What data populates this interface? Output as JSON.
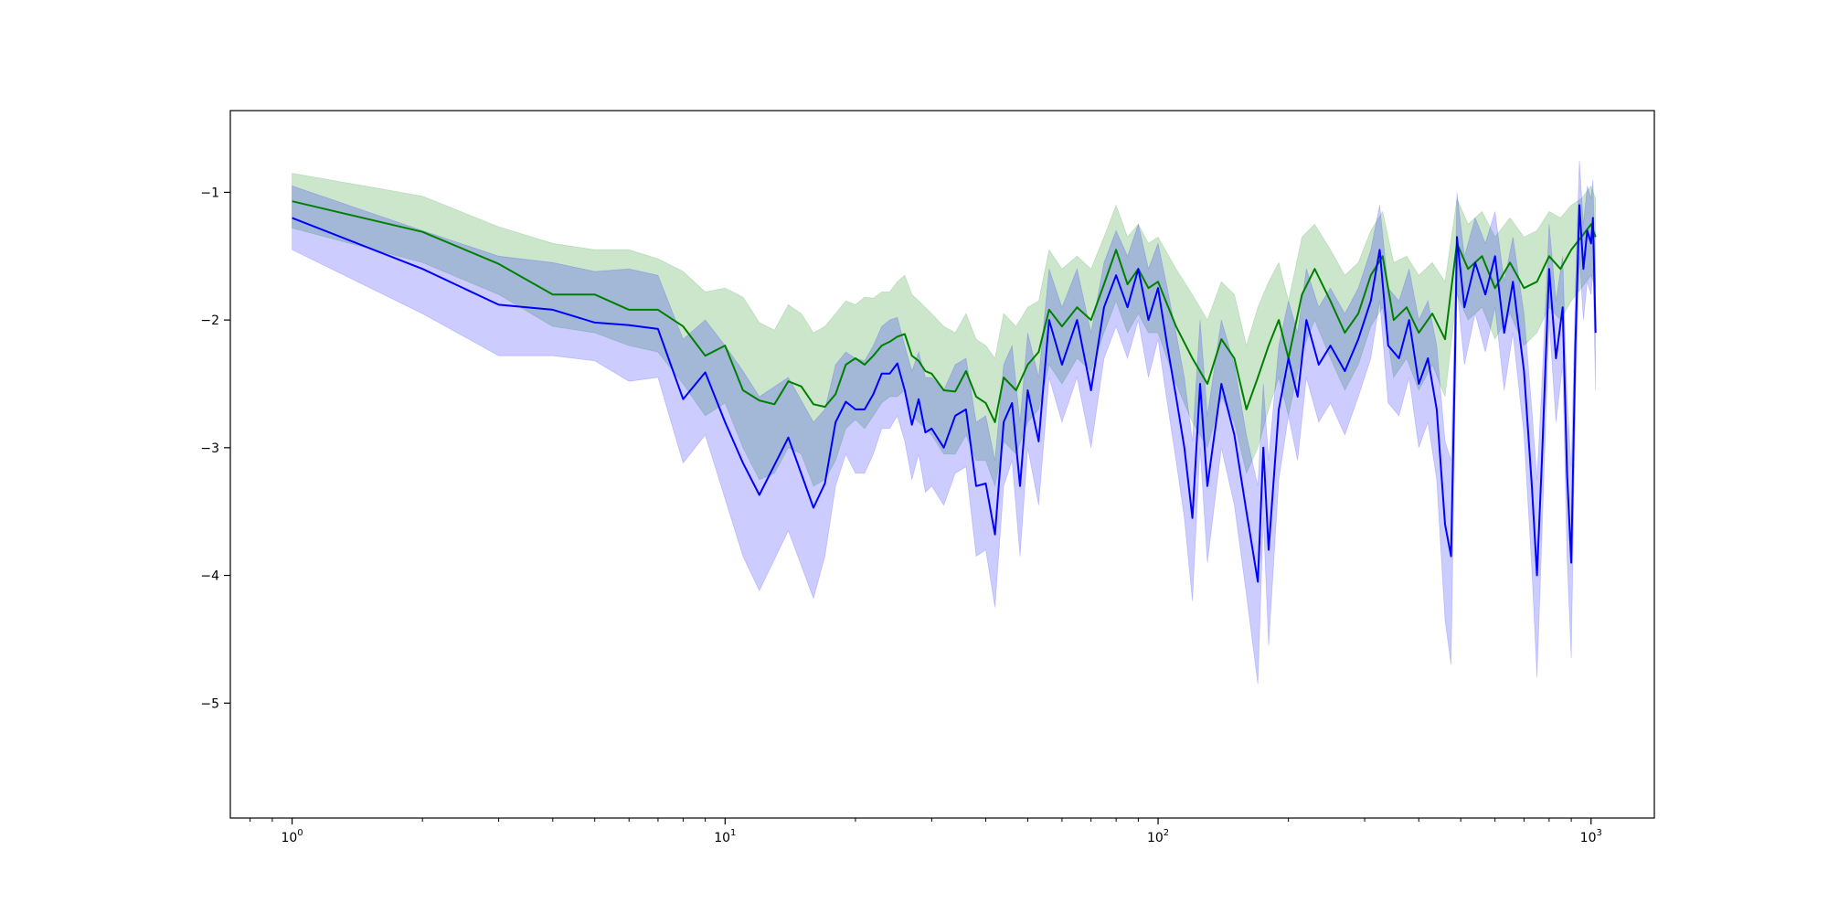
{
  "chart_data": {
    "type": "line",
    "title": "",
    "xlabel": "",
    "ylabel": "",
    "x_scale": "log",
    "xlim": [
      0.72,
      1400
    ],
    "ylim": [
      -5.9,
      -0.36
    ],
    "grid": false,
    "legend": "none",
    "x_ticks": [
      {
        "value": 1,
        "base": "10",
        "exp": "0"
      },
      {
        "value": 10,
        "base": "10",
        "exp": "1"
      },
      {
        "value": 100,
        "base": "10",
        "exp": "2"
      },
      {
        "value": 1000,
        "base": "10",
        "exp": "3"
      }
    ],
    "y_ticks": [
      {
        "value": -1,
        "label": "−1"
      },
      {
        "value": -2,
        "label": "−2"
      },
      {
        "value": -3,
        "label": "−3"
      },
      {
        "value": -4,
        "label": "−4"
      },
      {
        "value": -5,
        "label": "−5"
      }
    ],
    "series": [
      {
        "color": "#008000",
        "band_color": "#008000",
        "band_opacity": 0.2,
        "points": [
          [
            1,
            -1.07,
            -0.85,
            -1.28
          ],
          [
            2,
            -1.31,
            -1.03,
            -1.55
          ],
          [
            3,
            -1.56,
            -1.27,
            -1.8
          ],
          [
            4,
            -1.8,
            -1.4,
            -2.05
          ],
          [
            5,
            -1.8,
            -1.45,
            -2.1
          ],
          [
            6,
            -1.92,
            -1.45,
            -2.2
          ],
          [
            7,
            -1.92,
            -1.52,
            -2.25
          ],
          [
            8,
            -2.05,
            -1.62,
            -2.5
          ],
          [
            9,
            -2.28,
            -1.78,
            -2.75
          ],
          [
            10,
            -2.2,
            -1.75,
            -2.65
          ],
          [
            11,
            -2.55,
            -1.82,
            -3.0
          ],
          [
            12,
            -2.63,
            -2.02,
            -3.25
          ],
          [
            13,
            -2.66,
            -2.08,
            -3.2
          ],
          [
            14,
            -2.48,
            -1.88,
            -3.0
          ],
          [
            15,
            -2.52,
            -1.95,
            -3.05
          ],
          [
            16,
            -2.66,
            -2.1,
            -3.3
          ],
          [
            17,
            -2.68,
            -2.05,
            -3.25
          ],
          [
            18,
            -2.58,
            -1.95,
            -3.1
          ],
          [
            19,
            -2.35,
            -1.85,
            -2.85
          ],
          [
            20,
            -2.3,
            -1.88,
            -2.78
          ],
          [
            21,
            -2.35,
            -1.82,
            -2.85
          ],
          [
            22,
            -2.28,
            -1.83,
            -2.75
          ],
          [
            23,
            -2.2,
            -1.78,
            -2.65
          ],
          [
            24,
            -2.17,
            -1.78,
            -2.6
          ],
          [
            25,
            -2.13,
            -1.7,
            -2.6
          ],
          [
            26,
            -2.11,
            -1.65,
            -2.55
          ],
          [
            27,
            -2.28,
            -1.8,
            -2.75
          ],
          [
            28,
            -2.32,
            -1.85,
            -2.8
          ],
          [
            29,
            -2.4,
            -1.9,
            -2.85
          ],
          [
            30,
            -2.42,
            -1.95,
            -2.9
          ],
          [
            32,
            -2.55,
            -2.05,
            -3.05
          ],
          [
            34,
            -2.56,
            -2.1,
            -3.05
          ],
          [
            36,
            -2.4,
            -1.95,
            -2.9
          ],
          [
            38,
            -2.6,
            -2.15,
            -3.1
          ],
          [
            40,
            -2.65,
            -2.2,
            -3.1
          ],
          [
            42,
            -2.8,
            -2.3,
            -3.3
          ],
          [
            44,
            -2.45,
            -1.95,
            -2.95
          ],
          [
            47,
            -2.55,
            -2.05,
            -3.05
          ],
          [
            50,
            -2.35,
            -1.9,
            -2.8
          ],
          [
            53,
            -2.25,
            -1.85,
            -2.7
          ],
          [
            56,
            -1.92,
            -1.45,
            -2.35
          ],
          [
            60,
            -2.05,
            -1.6,
            -2.5
          ],
          [
            65,
            -1.9,
            -1.5,
            -2.3
          ],
          [
            70,
            -2.0,
            -1.6,
            -2.4
          ],
          [
            75,
            -1.72,
            -1.35,
            -2.1
          ],
          [
            80,
            -1.45,
            -1.1,
            -1.85
          ],
          [
            85,
            -1.72,
            -1.35,
            -2.1
          ],
          [
            90,
            -1.6,
            -1.25,
            -1.95
          ],
          [
            95,
            -1.75,
            -1.4,
            -2.1
          ],
          [
            100,
            -1.7,
            -1.35,
            -2.1
          ],
          [
            110,
            -2.05,
            -1.6,
            -2.5
          ],
          [
            120,
            -2.3,
            -1.8,
            -2.8
          ],
          [
            130,
            -2.5,
            -2.0,
            -3.0
          ],
          [
            140,
            -2.15,
            -1.7,
            -2.6
          ],
          [
            150,
            -2.3,
            -1.8,
            -2.8
          ],
          [
            160,
            -2.7,
            -2.2,
            -3.2
          ],
          [
            170,
            -2.45,
            -1.9,
            -3.0
          ],
          [
            180,
            -2.2,
            -1.7,
            -2.7
          ],
          [
            190,
            -2.0,
            -1.55,
            -2.45
          ],
          [
            200,
            -2.3,
            -1.85,
            -2.75
          ],
          [
            215,
            -1.8,
            -1.35,
            -2.25
          ],
          [
            230,
            -1.6,
            -1.25,
            -2.0
          ],
          [
            250,
            -1.85,
            -1.45,
            -2.3
          ],
          [
            270,
            -2.1,
            -1.65,
            -2.55
          ],
          [
            290,
            -1.95,
            -1.55,
            -2.35
          ],
          [
            310,
            -1.65,
            -1.3,
            -2.05
          ],
          [
            330,
            -1.5,
            -1.15,
            -1.9
          ],
          [
            350,
            -2.0,
            -1.55,
            -2.45
          ],
          [
            375,
            -1.9,
            -1.5,
            -2.3
          ],
          [
            400,
            -2.1,
            -1.65,
            -2.55
          ],
          [
            430,
            -1.95,
            -1.55,
            -2.35
          ],
          [
            460,
            -2.15,
            -1.7,
            -2.6
          ],
          [
            490,
            -1.4,
            -1.05,
            -1.8
          ],
          [
            520,
            -1.6,
            -1.25,
            -2.0
          ],
          [
            560,
            -1.5,
            -1.15,
            -1.9
          ],
          [
            600,
            -1.75,
            -1.35,
            -2.15
          ],
          [
            650,
            -1.55,
            -1.2,
            -1.95
          ],
          [
            700,
            -1.75,
            -1.35,
            -2.2
          ],
          [
            750,
            -1.7,
            -1.3,
            -2.1
          ],
          [
            800,
            -1.5,
            -1.15,
            -1.9
          ],
          [
            850,
            -1.6,
            -1.2,
            -2.0
          ],
          [
            900,
            -1.45,
            -1.1,
            -1.85
          ],
          [
            950,
            -1.35,
            -1.05,
            -1.75
          ],
          [
            1000,
            -1.25,
            -0.95,
            -1.65
          ],
          [
            1024,
            -1.35,
            -1.05,
            -1.75
          ]
        ]
      },
      {
        "color": "#0000ff",
        "band_color": "#0000ff",
        "band_opacity": 0.2,
        "points": [
          [
            1,
            -1.2,
            -0.95,
            -1.45
          ],
          [
            2,
            -1.6,
            -1.3,
            -1.95
          ],
          [
            3,
            -1.88,
            -1.5,
            -2.28
          ],
          [
            4,
            -1.92,
            -1.55,
            -2.28
          ],
          [
            5,
            -2.02,
            -1.62,
            -2.32
          ],
          [
            6,
            -2.04,
            -1.6,
            -2.48
          ],
          [
            7,
            -2.07,
            -1.65,
            -2.45
          ],
          [
            8,
            -2.62,
            -2.15,
            -3.12
          ],
          [
            9,
            -2.41,
            -2.0,
            -2.9
          ],
          [
            10,
            -2.8,
            -2.2,
            -3.4
          ],
          [
            11,
            -3.12,
            -2.4,
            -3.85
          ],
          [
            12,
            -3.37,
            -2.6,
            -4.12
          ],
          [
            14,
            -2.92,
            -2.45,
            -3.65
          ],
          [
            16,
            -3.47,
            -2.8,
            -4.18
          ],
          [
            17,
            -3.28,
            -2.7,
            -3.85
          ],
          [
            18,
            -2.8,
            -2.35,
            -3.3
          ],
          [
            19,
            -2.64,
            -2.25,
            -3.05
          ],
          [
            20,
            -2.7,
            -2.3,
            -3.2
          ],
          [
            21,
            -2.7,
            -2.32,
            -3.2
          ],
          [
            22,
            -2.58,
            -2.2,
            -3.05
          ],
          [
            23,
            -2.42,
            -2.05,
            -2.85
          ],
          [
            24,
            -2.42,
            -2.0,
            -2.85
          ],
          [
            25,
            -2.34,
            -1.98,
            -2.75
          ],
          [
            26,
            -2.55,
            -2.2,
            -2.95
          ],
          [
            27,
            -2.82,
            -2.4,
            -3.25
          ],
          [
            28,
            -2.62,
            -2.25,
            -3.05
          ],
          [
            29,
            -2.88,
            -2.45,
            -3.35
          ],
          [
            30,
            -2.85,
            -2.45,
            -3.3
          ],
          [
            32,
            -3.0,
            -2.55,
            -3.45
          ],
          [
            34,
            -2.75,
            -2.35,
            -3.2
          ],
          [
            36,
            -2.7,
            -2.3,
            -3.15
          ],
          [
            38,
            -3.3,
            -2.8,
            -3.85
          ],
          [
            40,
            -3.28,
            -2.75,
            -3.8
          ],
          [
            42,
            -3.68,
            -3.1,
            -4.25
          ],
          [
            44,
            -2.8,
            -2.35,
            -3.3
          ],
          [
            46,
            -2.65,
            -2.2,
            -3.1
          ],
          [
            48,
            -3.3,
            -2.8,
            -3.85
          ],
          [
            50,
            -2.55,
            -2.1,
            -3.0
          ],
          [
            53,
            -2.95,
            -2.45,
            -3.45
          ],
          [
            56,
            -2.0,
            -1.6,
            -2.45
          ],
          [
            60,
            -2.35,
            -1.9,
            -2.8
          ],
          [
            65,
            -2.0,
            -1.6,
            -2.45
          ],
          [
            70,
            -2.55,
            -2.1,
            -3.0
          ],
          [
            75,
            -1.9,
            -1.55,
            -2.3
          ],
          [
            80,
            -1.65,
            -1.3,
            -2.05
          ],
          [
            85,
            -1.9,
            -1.5,
            -2.3
          ],
          [
            90,
            -1.6,
            -1.25,
            -2.0
          ],
          [
            95,
            -2.0,
            -1.6,
            -2.45
          ],
          [
            100,
            -1.75,
            -1.4,
            -2.15
          ],
          [
            105,
            -2.2,
            -1.75,
            -2.65
          ],
          [
            110,
            -2.6,
            -2.1,
            -3.1
          ],
          [
            115,
            -3.0,
            -2.45,
            -3.55
          ],
          [
            120,
            -3.55,
            -2.95,
            -4.2
          ],
          [
            125,
            -2.5,
            -2.0,
            -3.0
          ],
          [
            130,
            -3.3,
            -2.75,
            -3.9
          ],
          [
            140,
            -2.5,
            -2.0,
            -3.0
          ],
          [
            150,
            -2.9,
            -2.35,
            -3.45
          ],
          [
            160,
            -3.5,
            -2.9,
            -4.15
          ],
          [
            170,
            -4.05,
            -3.3,
            -4.85
          ],
          [
            175,
            -3.0,
            -2.5,
            -3.55
          ],
          [
            180,
            -3.8,
            -3.1,
            -4.55
          ],
          [
            190,
            -2.7,
            -2.2,
            -3.25
          ],
          [
            200,
            -2.3,
            -1.85,
            -2.75
          ],
          [
            210,
            -2.6,
            -2.1,
            -3.1
          ],
          [
            220,
            -2.0,
            -1.6,
            -2.45
          ],
          [
            235,
            -2.35,
            -1.9,
            -2.8
          ],
          [
            250,
            -2.2,
            -1.75,
            -2.65
          ],
          [
            270,
            -2.4,
            -1.95,
            -2.9
          ],
          [
            290,
            -2.15,
            -1.75,
            -2.6
          ],
          [
            310,
            -1.85,
            -1.45,
            -2.3
          ],
          [
            325,
            -1.45,
            -1.1,
            -1.85
          ],
          [
            340,
            -2.2,
            -1.75,
            -2.65
          ],
          [
            360,
            -2.3,
            -1.85,
            -2.75
          ],
          [
            380,
            -2.0,
            -1.6,
            -2.45
          ],
          [
            400,
            -2.5,
            -2.0,
            -3.0
          ],
          [
            420,
            -2.3,
            -1.85,
            -2.8
          ],
          [
            440,
            -2.7,
            -2.2,
            -3.25
          ],
          [
            460,
            -3.6,
            -2.95,
            -4.35
          ],
          [
            475,
            -3.85,
            -3.1,
            -4.7
          ],
          [
            485,
            -2.3,
            -1.85,
            -2.8
          ],
          [
            490,
            -1.35,
            -1.0,
            -1.75
          ],
          [
            510,
            -1.9,
            -1.5,
            -2.35
          ],
          [
            540,
            -1.55,
            -1.2,
            -1.95
          ],
          [
            570,
            -1.8,
            -1.4,
            -2.25
          ],
          [
            600,
            -1.5,
            -1.15,
            -1.9
          ],
          [
            630,
            -2.1,
            -1.7,
            -2.55
          ],
          [
            660,
            -1.7,
            -1.35,
            -2.1
          ],
          [
            700,
            -2.4,
            -1.95,
            -2.9
          ],
          [
            730,
            -3.3,
            -2.7,
            -3.95
          ],
          [
            750,
            -4.0,
            -3.25,
            -4.8
          ],
          [
            770,
            -3.1,
            -2.5,
            -3.7
          ],
          [
            800,
            -1.6,
            -1.25,
            -2.0
          ],
          [
            830,
            -2.3,
            -1.85,
            -2.8
          ],
          [
            860,
            -1.9,
            -1.5,
            -2.35
          ],
          [
            880,
            -3.2,
            -2.6,
            -3.85
          ],
          [
            900,
            -3.9,
            -3.15,
            -4.65
          ],
          [
            920,
            -2.2,
            -1.75,
            -2.65
          ],
          [
            940,
            -1.1,
            -0.75,
            -1.5
          ],
          [
            960,
            -1.6,
            -1.25,
            -2.0
          ],
          [
            980,
            -1.3,
            -0.95,
            -1.7
          ],
          [
            1000,
            -1.4,
            -1.05,
            -1.8
          ],
          [
            1010,
            -1.2,
            -0.9,
            -1.6
          ],
          [
            1024,
            -2.1,
            -1.7,
            -2.55
          ]
        ]
      }
    ]
  }
}
